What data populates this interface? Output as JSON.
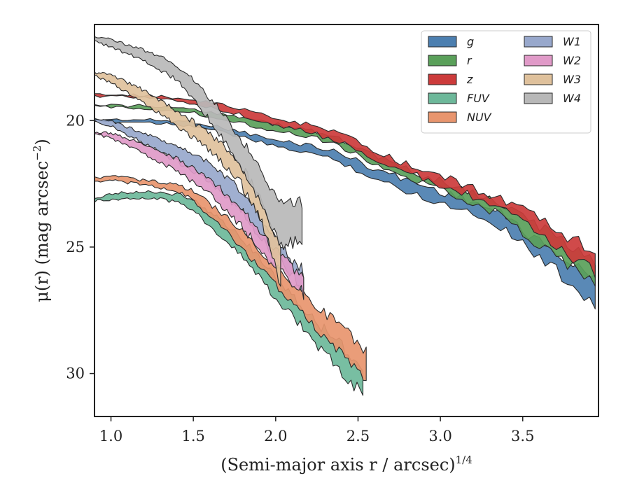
{
  "chart_data": {
    "type": "area",
    "xlabel": "(Semi-major axis r / arcsec)",
    "xlabel_sup": "1/4",
    "ylabel": "μ(r) (mag arcsec",
    "ylabel_sup": "−2",
    "ylabel_close": ")",
    "xlim": [
      0.9,
      3.96
    ],
    "ylim": [
      31.7,
      16.2
    ],
    "y_inverted": true,
    "xticks": [
      1.0,
      1.5,
      2.0,
      2.5,
      3.0,
      3.5
    ],
    "xtick_labels": [
      "1.0",
      "1.5",
      "2.0",
      "2.5",
      "3.0",
      "3.5"
    ],
    "yticks": [
      20,
      25,
      30
    ],
    "ytick_labels": [
      "20",
      "25",
      "30"
    ],
    "grid": false,
    "legend_placement": "top-right",
    "legend_columns": 2,
    "series": [
      {
        "name": "g",
        "color": "#4c7fb0",
        "x": [
          0.9,
          1.2,
          1.5,
          1.8,
          2.0,
          2.2,
          2.4,
          2.6,
          2.8,
          3.0,
          3.2,
          3.4,
          3.5,
          3.6,
          3.7,
          3.8,
          3.88,
          3.94
        ],
        "y_lo": [
          19.95,
          19.97,
          20.05,
          20.45,
          20.8,
          20.95,
          21.3,
          21.9,
          22.35,
          22.8,
          23.2,
          23.8,
          24.3,
          24.8,
          25.2,
          25.7,
          26.0,
          26.3
        ],
        "y_hi": [
          20.05,
          20.05,
          20.2,
          20.65,
          21.05,
          21.25,
          21.65,
          22.3,
          22.8,
          23.25,
          23.65,
          24.3,
          24.85,
          25.4,
          25.9,
          26.5,
          26.9,
          27.3
        ]
      },
      {
        "name": "r",
        "color": "#5aa05a",
        "x": [
          0.9,
          1.2,
          1.5,
          1.8,
          2.0,
          2.2,
          2.4,
          2.6,
          2.8,
          3.0,
          3.2,
          3.4,
          3.5,
          3.6,
          3.7,
          3.8,
          3.88,
          3.94
        ],
        "y_lo": [
          19.4,
          19.42,
          19.55,
          19.85,
          20.15,
          20.35,
          20.75,
          21.4,
          21.95,
          22.4,
          22.85,
          23.4,
          23.8,
          24.2,
          24.6,
          25.0,
          25.25,
          25.5
        ],
        "y_hi": [
          19.45,
          19.5,
          19.7,
          20.1,
          20.4,
          20.6,
          21.05,
          21.7,
          22.3,
          22.75,
          23.2,
          23.9,
          24.4,
          24.9,
          25.3,
          25.8,
          26.1,
          26.6
        ]
      },
      {
        "name": "z",
        "color": "#cc3b3b",
        "x": [
          0.9,
          1.2,
          1.5,
          1.8,
          2.0,
          2.2,
          2.4,
          2.6,
          2.8,
          3.0,
          3.2,
          3.4,
          3.5,
          3.6,
          3.7,
          3.8,
          3.88,
          3.94
        ],
        "y_lo": [
          18.98,
          19.0,
          19.15,
          19.55,
          19.95,
          20.15,
          20.55,
          21.2,
          21.75,
          22.2,
          22.65,
          23.2,
          23.55,
          23.95,
          24.3,
          24.7,
          24.9,
          25.0
        ],
        "y_hi": [
          19.02,
          19.08,
          19.3,
          19.8,
          20.2,
          20.45,
          20.85,
          21.5,
          22.05,
          22.55,
          23.0,
          23.65,
          24.05,
          24.55,
          25.0,
          25.4,
          25.7,
          26.0
        ]
      },
      {
        "name": "FUV",
        "color": "#6db89a",
        "x": [
          0.9,
          1.0,
          1.2,
          1.4,
          1.5,
          1.6,
          1.7,
          1.8,
          1.9,
          2.0,
          2.1,
          2.2,
          2.3,
          2.4,
          2.5,
          2.53
        ],
        "y_lo": [
          23.05,
          22.9,
          22.8,
          22.9,
          23.1,
          23.6,
          24.1,
          24.7,
          25.4,
          26.2,
          26.9,
          27.6,
          28.3,
          28.9,
          29.6,
          30.0
        ],
        "y_hi": [
          23.2,
          23.1,
          23.05,
          23.2,
          23.5,
          24.2,
          24.7,
          25.4,
          26.2,
          27.0,
          27.7,
          28.5,
          29.2,
          29.9,
          30.6,
          31.1
        ]
      },
      {
        "name": "NUV",
        "color": "#e8956e",
        "x": [
          0.9,
          1.0,
          1.2,
          1.4,
          1.5,
          1.6,
          1.7,
          1.8,
          1.9,
          2.0,
          2.1,
          2.2,
          2.3,
          2.4,
          2.5,
          2.55
        ],
        "y_lo": [
          22.25,
          22.2,
          22.35,
          22.55,
          22.8,
          23.3,
          23.8,
          24.4,
          25.1,
          25.8,
          26.4,
          27.0,
          27.6,
          28.2,
          28.8,
          29.2
        ],
        "y_hi": [
          22.4,
          22.35,
          22.55,
          22.8,
          23.15,
          23.8,
          24.4,
          25.1,
          25.8,
          26.5,
          27.2,
          27.9,
          28.6,
          29.2,
          29.8,
          30.2
        ]
      },
      {
        "name": "W1",
        "color": "#98a8cc",
        "x": [
          0.9,
          1.0,
          1.2,
          1.4,
          1.6,
          1.8,
          1.9,
          2.0,
          2.1,
          2.17
        ],
        "y_lo": [
          19.95,
          20.0,
          20.5,
          21.0,
          21.7,
          22.8,
          23.8,
          24.6,
          25.5,
          26.0
        ],
        "y_hi": [
          20.0,
          20.2,
          20.9,
          21.6,
          22.4,
          23.6,
          24.6,
          25.3,
          26.2,
          26.7
        ]
      },
      {
        "name": "W2",
        "color": "#e09ac8",
        "x": [
          0.9,
          1.0,
          1.2,
          1.4,
          1.6,
          1.8,
          1.9,
          2.0,
          2.1,
          2.17
        ],
        "y_lo": [
          20.45,
          20.5,
          20.9,
          21.5,
          22.3,
          23.5,
          24.4,
          25.1,
          25.8,
          26.2
        ],
        "y_hi": [
          20.55,
          20.7,
          21.3,
          22.0,
          22.9,
          24.2,
          25.1,
          25.8,
          26.5,
          26.8
        ]
      },
      {
        "name": "W3",
        "color": "#dfc19c",
        "x": [
          0.9,
          1.0,
          1.2,
          1.4,
          1.6,
          1.7,
          1.8,
          1.9,
          1.95,
          2.0,
          2.03
        ],
        "y_lo": [
          18.1,
          18.2,
          18.8,
          19.6,
          20.5,
          21.1,
          21.9,
          23.0,
          23.8,
          24.5,
          25.0
        ],
        "y_hi": [
          18.2,
          18.5,
          19.3,
          20.2,
          21.2,
          21.8,
          22.6,
          23.8,
          24.7,
          25.8,
          26.8
        ]
      },
      {
        "name": "W4",
        "color": "#b8b8b8",
        "x": [
          0.9,
          1.0,
          1.2,
          1.4,
          1.5,
          1.6,
          1.7,
          1.8,
          1.9,
          1.98,
          2.05,
          2.1,
          2.16
        ],
        "y_lo": [
          16.7,
          16.8,
          17.2,
          17.8,
          18.4,
          19.1,
          19.9,
          20.8,
          21.9,
          22.8,
          23.3,
          23.2,
          23.2
        ],
        "y_hi": [
          16.85,
          17.1,
          17.6,
          18.4,
          19.1,
          20.0,
          20.9,
          22.0,
          23.1,
          24.3,
          25.0,
          24.8,
          24.9
        ]
      }
    ]
  }
}
